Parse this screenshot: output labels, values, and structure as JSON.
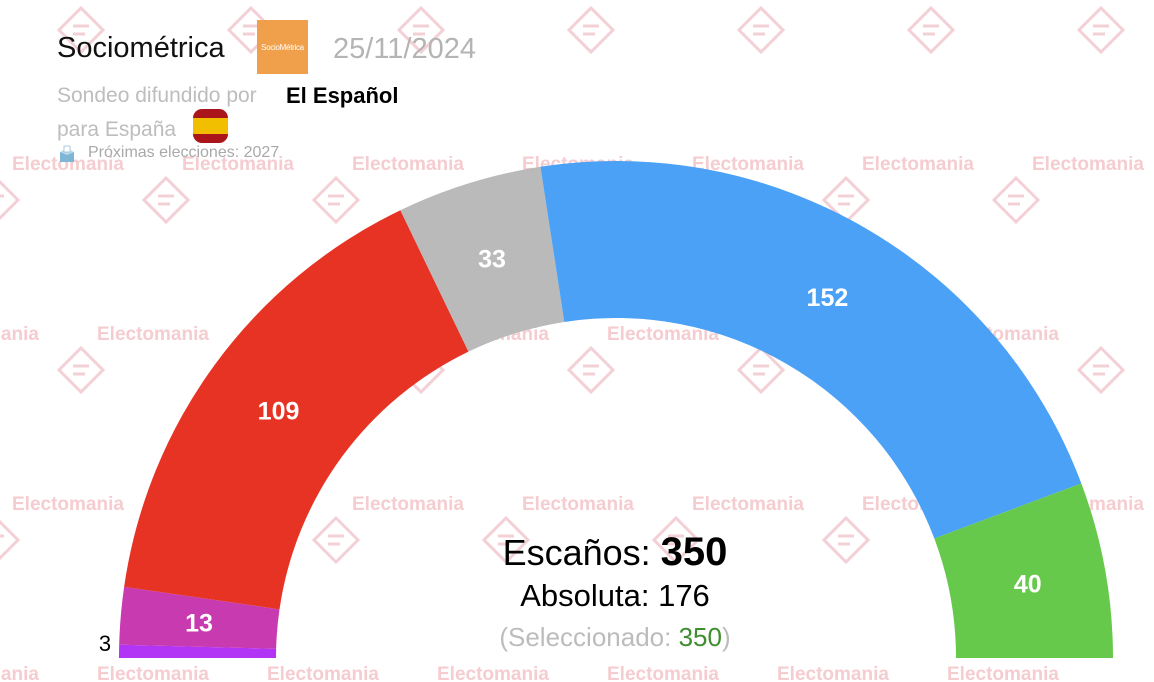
{
  "header": {
    "pollster": "Sociométrica",
    "logo_text": "SocioMétrica",
    "date": "25/11/2024",
    "sub_prefix": "Sondeo difundido por",
    "media": "El Español",
    "sub_region": "para España",
    "next_elections": "Próximas elecciones: 2027",
    "flag_icon": "spain-flag-icon",
    "ballot_icon": "ballot-box-icon"
  },
  "watermark": {
    "text": "Electomania",
    "color": "#f5cccf"
  },
  "center": {
    "seats_label": "Escaños:",
    "seats_total": "350",
    "majority_label": "Absoluta:",
    "majority_value": "176",
    "selected_prefix": "(Seleccionado: ",
    "selected_value": "350",
    "selected_suffix": ")"
  },
  "chart_data": {
    "type": "parliament-semicircle",
    "total_seats": 350,
    "majority": 176,
    "series": [
      {
        "seats": 3,
        "color": "#b234f5"
      },
      {
        "seats": 13,
        "color": "#c83ab0"
      },
      {
        "seats": 109,
        "color": "#e63324"
      },
      {
        "seats": 33,
        "color": "#bababa"
      },
      {
        "seats": 152,
        "color": "#4aa1f5"
      },
      {
        "seats": 40,
        "color": "#67c94c"
      }
    ]
  }
}
